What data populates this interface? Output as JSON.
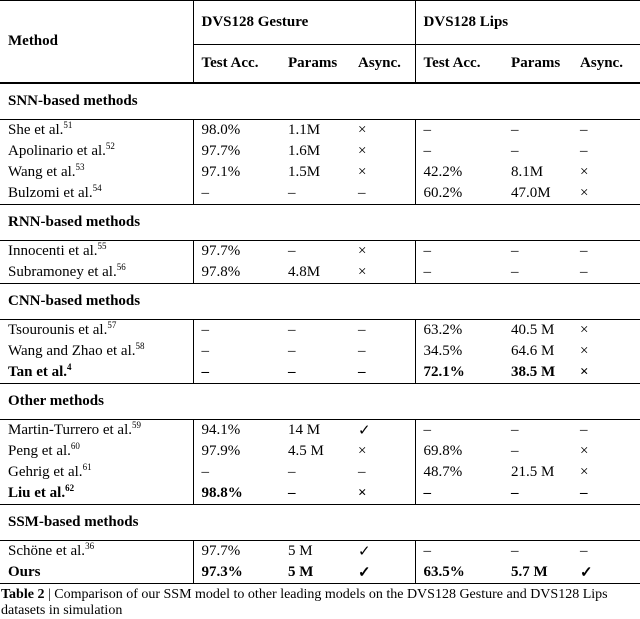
{
  "table": {
    "header": {
      "method": "Method",
      "groups": [
        "DVS128 Gesture",
        "DVS128 Lips"
      ],
      "columns": [
        "Test Acc.",
        "Params",
        "Async.",
        "Test Acc.",
        "Params",
        "Async."
      ]
    },
    "sections": [
      {
        "title": "SNN-based methods",
        "rows": [
          {
            "method": "She et al.",
            "ref": "51",
            "cells": [
              "98.0%",
              "1.1M",
              "×",
              "–",
              "–",
              "–"
            ]
          },
          {
            "method": "Apolinario et al.",
            "ref": "52",
            "cells": [
              "97.7%",
              "1.6M",
              "×",
              "–",
              "–",
              "–"
            ]
          },
          {
            "method": "Wang et al.",
            "ref": "53",
            "cells": [
              "97.1%",
              "1.5M",
              "×",
              "42.2%",
              "8.1M",
              "×"
            ]
          },
          {
            "method": "Bulzomi et al.",
            "ref": "54",
            "cells": [
              "–",
              "–",
              "–",
              "60.2%",
              "47.0M",
              "×"
            ]
          }
        ]
      },
      {
        "title": "RNN-based methods",
        "rows": [
          {
            "method": "Innocenti et al.",
            "ref": "55",
            "cells": [
              "97.7%",
              "–",
              "×",
              "–",
              "–",
              "–"
            ]
          },
          {
            "method": "Subramoney et al.",
            "ref": "56",
            "cells": [
              "97.8%",
              "4.8M",
              "×",
              "–",
              "–",
              "–"
            ]
          }
        ]
      },
      {
        "title": "CNN-based methods",
        "rows": [
          {
            "method": "Tsourounis et al.",
            "ref": "57",
            "cells": [
              "–",
              "–",
              "–",
              "63.2%",
              "40.5 M",
              "×"
            ]
          },
          {
            "method": "Wang and Zhao et al.",
            "ref": "58",
            "cells": [
              "–",
              "–",
              "–",
              "34.5%",
              "64.6 M",
              "×"
            ]
          },
          {
            "method": "Tan et al.",
            "ref": "4",
            "bold": true,
            "cells": [
              "–",
              "–",
              "–",
              "72.1%",
              "38.5 M",
              "×"
            ]
          }
        ]
      },
      {
        "title": "Other methods",
        "rows": [
          {
            "method": "Martin-Turrero et al.",
            "ref": "59",
            "cells": [
              "94.1%",
              "14 M",
              "✓",
              "–",
              "–",
              "–"
            ]
          },
          {
            "method": "Peng et al.",
            "ref": "60",
            "cells": [
              "97.9%",
              "4.5 M",
              "×",
              "69.8%",
              "–",
              "×"
            ]
          },
          {
            "method": "Gehrig et al.",
            "ref": "61",
            "cells": [
              "–",
              "–",
              "–",
              "48.7%",
              "21.5 M",
              "×"
            ]
          },
          {
            "method": "Liu et al.",
            "ref": "62",
            "bold": true,
            "cells": [
              "98.8%",
              "–",
              "×",
              "–",
              "–",
              "–"
            ]
          }
        ]
      },
      {
        "title": "SSM-based methods",
        "rows": [
          {
            "method": "Schöne et al.",
            "ref": "36",
            "cells": [
              "97.7%",
              "5 M",
              "✓",
              "–",
              "–",
              "–"
            ]
          },
          {
            "method": "Ours",
            "bold": true,
            "cells": [
              "97.3%",
              "5 M",
              "✓",
              "63.5%",
              "5.7 M",
              "✓"
            ]
          }
        ]
      }
    ]
  },
  "caption": {
    "label": "Table 2",
    "text": "| Comparison of our SSM model to other leading models on the DVS128 Gesture and DVS128 Lips datasets in simulation"
  }
}
